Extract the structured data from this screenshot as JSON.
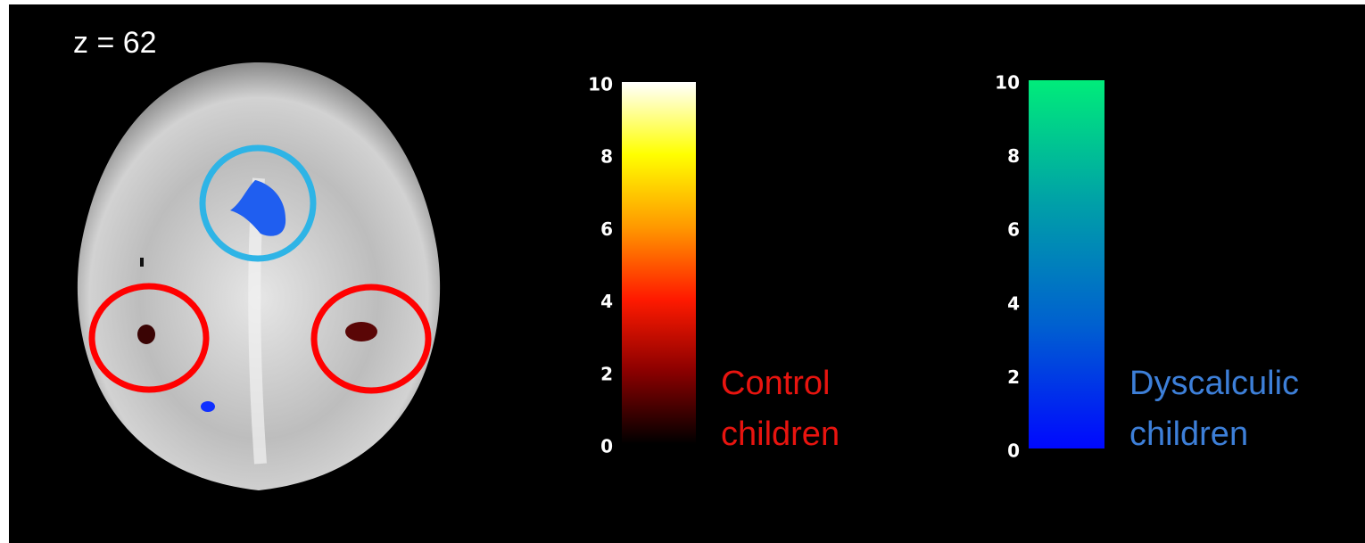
{
  "slice_label": "z = 62",
  "colorbars": [
    {
      "lim": [
        0,
        10
      ],
      "ticks": [
        0,
        2,
        4,
        6,
        8,
        10
      ],
      "gradient": [
        "#000000",
        "#8a0000",
        "#ff1a00",
        "#ff9900",
        "#ffff00",
        "#ffffff"
      ],
      "label": [
        "Control",
        "children"
      ],
      "label_color": "#e8140f"
    },
    {
      "lim": [
        0,
        10
      ],
      "ticks": [
        0,
        2,
        4,
        6,
        8,
        10
      ],
      "gradient": [
        "#0008ff",
        "#0060d0",
        "#00a0a8",
        "#00ec7a"
      ],
      "label": [
        "Dyscalculic",
        "children"
      ],
      "label_color": "#3d7fd8"
    }
  ]
}
